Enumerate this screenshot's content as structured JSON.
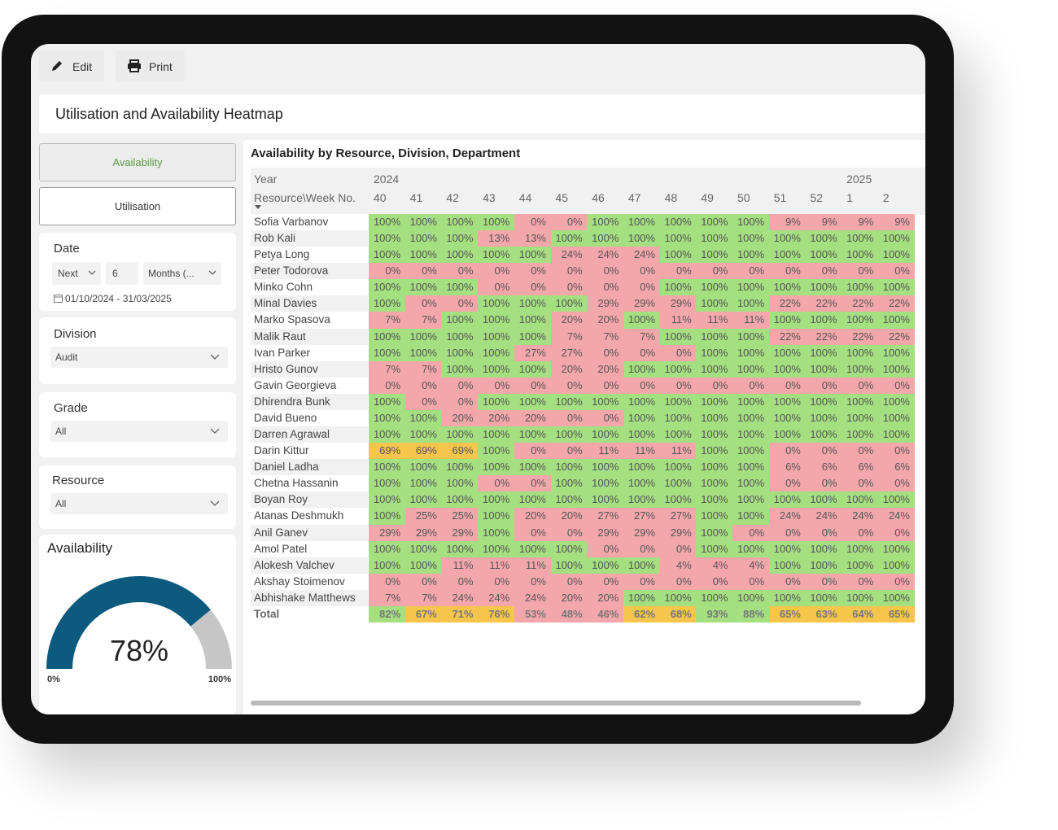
{
  "toolbar": {
    "edit": "Edit",
    "print": "Print"
  },
  "header": {
    "title": "Utilisation and Availability Heatmap"
  },
  "sidebar": {
    "tabs": [
      "Availability",
      "Utilisation"
    ],
    "date": {
      "label": "Date",
      "direction": "Next",
      "count": "6",
      "unit": "Months (...",
      "range": "01/10/2024 - 31/03/2025"
    },
    "division": {
      "label": "Division",
      "value": "Audit"
    },
    "grade": {
      "label": "Grade",
      "value": "All"
    },
    "resource": {
      "label": "Resource",
      "value": "All"
    }
  },
  "gauge": {
    "title": "Availability",
    "value": 78,
    "label": "78%",
    "min": {
      "value": 0,
      "label": "0%"
    },
    "max": {
      "value": 100,
      "label": "100%"
    }
  },
  "table": {
    "title": "Availability by Resource, Division, Department",
    "year_label": "Year",
    "corner": "Resource\\Week No.",
    "years": [
      "2024",
      null,
      null,
      null,
      null,
      null,
      null,
      null,
      null,
      null,
      null,
      null,
      null,
      "2025",
      null
    ],
    "weeks": [
      "40",
      "41",
      "42",
      "43",
      "44",
      "45",
      "46",
      "47",
      "48",
      "49",
      "50",
      "51",
      "52",
      "1",
      "2"
    ],
    "rows": [
      {
        "name": "Sofia Varbanov",
        "cells": [
          "100%",
          "100%",
          "100%",
          "100%",
          "0%",
          "0%",
          "100%",
          "100%",
          "100%",
          "100%",
          "100%",
          "9%",
          "9%",
          "9%",
          "9%"
        ]
      },
      {
        "name": "Rob Kali",
        "cells": [
          "100%",
          "100%",
          "100%",
          "13%",
          "13%",
          "100%",
          "100%",
          "100%",
          "100%",
          "100%",
          "100%",
          "100%",
          "100%",
          "100%",
          "100%"
        ]
      },
      {
        "name": "Petya Long",
        "cells": [
          "100%",
          "100%",
          "100%",
          "100%",
          "100%",
          "24%",
          "24%",
          "24%",
          "100%",
          "100%",
          "100%",
          "100%",
          "100%",
          "100%",
          "100%"
        ]
      },
      {
        "name": "Peter Todorova",
        "cells": [
          "0%",
          "0%",
          "0%",
          "0%",
          "0%",
          "0%",
          "0%",
          "0%",
          "0%",
          "0%",
          "0%",
          "0%",
          "0%",
          "0%",
          "0%"
        ]
      },
      {
        "name": "Minko Cohn",
        "cells": [
          "100%",
          "100%",
          "100%",
          "0%",
          "0%",
          "0%",
          "0%",
          "0%",
          "100%",
          "100%",
          "100%",
          "100%",
          "100%",
          "100%",
          "100%"
        ]
      },
      {
        "name": "Minal Davies",
        "cells": [
          "100%",
          "0%",
          "0%",
          "100%",
          "100%",
          "100%",
          "29%",
          "29%",
          "29%",
          "100%",
          "100%",
          "22%",
          "22%",
          "22%",
          "22%"
        ]
      },
      {
        "name": "Marko Spasova",
        "cells": [
          "7%",
          "7%",
          "100%",
          "100%",
          "100%",
          "20%",
          "20%",
          "100%",
          "11%",
          "11%",
          "11%",
          "100%",
          "100%",
          "100%",
          "100%"
        ]
      },
      {
        "name": "Malik Raut",
        "cells": [
          "100%",
          "100%",
          "100%",
          "100%",
          "100%",
          "7%",
          "7%",
          "7%",
          "100%",
          "100%",
          "100%",
          "22%",
          "22%",
          "22%",
          "22%"
        ]
      },
      {
        "name": "Ivan Parker",
        "cells": [
          "100%",
          "100%",
          "100%",
          "100%",
          "27%",
          "27%",
          "0%",
          "0%",
          "0%",
          "100%",
          "100%",
          "100%",
          "100%",
          "100%",
          "100%"
        ]
      },
      {
        "name": "Hristo Gunov",
        "cells": [
          "7%",
          "7%",
          "100%",
          "100%",
          "100%",
          "20%",
          "20%",
          "100%",
          "100%",
          "100%",
          "100%",
          "100%",
          "100%",
          "100%",
          "100%"
        ]
      },
      {
        "name": "Gavin Georgieva",
        "cells": [
          "0%",
          "0%",
          "0%",
          "0%",
          "0%",
          "0%",
          "0%",
          "0%",
          "0%",
          "0%",
          "0%",
          "0%",
          "0%",
          "0%",
          "0%"
        ]
      },
      {
        "name": "Dhirendra Bunk",
        "cells": [
          "100%",
          "0%",
          "0%",
          "100%",
          "100%",
          "100%",
          "100%",
          "100%",
          "100%",
          "100%",
          "100%",
          "100%",
          "100%",
          "100%",
          "100%"
        ]
      },
      {
        "name": "David Bueno",
        "cells": [
          "100%",
          "100%",
          "20%",
          "20%",
          "20%",
          "0%",
          "0%",
          "100%",
          "100%",
          "100%",
          "100%",
          "100%",
          "100%",
          "100%",
          "100%"
        ]
      },
      {
        "name": "Darren Agrawal",
        "cells": [
          "100%",
          "100%",
          "100%",
          "100%",
          "100%",
          "100%",
          "100%",
          "100%",
          "100%",
          "100%",
          "100%",
          "100%",
          "100%",
          "100%",
          "100%"
        ]
      },
      {
        "name": "Darin Kittur",
        "cells": [
          "69%",
          "69%",
          "69%",
          "100%",
          "0%",
          "0%",
          "11%",
          "11%",
          "11%",
          "100%",
          "100%",
          "0%",
          "0%",
          "0%",
          "0%"
        ]
      },
      {
        "name": "Daniel Ladha",
        "cells": [
          "100%",
          "100%",
          "100%",
          "100%",
          "100%",
          "100%",
          "100%",
          "100%",
          "100%",
          "100%",
          "100%",
          "6%",
          "6%",
          "6%",
          "6%"
        ]
      },
      {
        "name": "Chetna Hassanin",
        "cells": [
          "100%",
          "100%",
          "100%",
          "0%",
          "0%",
          "100%",
          "100%",
          "100%",
          "100%",
          "100%",
          "100%",
          "0%",
          "0%",
          "0%",
          "0%"
        ]
      },
      {
        "name": "Boyan Roy",
        "cells": [
          "100%",
          "100%",
          "100%",
          "100%",
          "100%",
          "100%",
          "100%",
          "100%",
          "100%",
          "100%",
          "100%",
          "100%",
          "100%",
          "100%",
          "100%"
        ]
      },
      {
        "name": "Atanas Deshmukh",
        "cells": [
          "100%",
          "25%",
          "25%",
          "100%",
          "20%",
          "20%",
          "27%",
          "27%",
          "27%",
          "100%",
          "100%",
          "24%",
          "24%",
          "24%",
          "24%"
        ]
      },
      {
        "name": "Anil Ganev",
        "cells": [
          "29%",
          "29%",
          "29%",
          "100%",
          "0%",
          "0%",
          "29%",
          "29%",
          "29%",
          "100%",
          "0%",
          "0%",
          "0%",
          "0%",
          "0%"
        ]
      },
      {
        "name": "Amol Patel",
        "cells": [
          "100%",
          "100%",
          "100%",
          "100%",
          "100%",
          "100%",
          "0%",
          "0%",
          "0%",
          "100%",
          "100%",
          "100%",
          "100%",
          "100%",
          "100%"
        ]
      },
      {
        "name": "Alokesh Valchev",
        "cells": [
          "100%",
          "100%",
          "11%",
          "11%",
          "11%",
          "100%",
          "100%",
          "100%",
          "4%",
          "4%",
          "4%",
          "100%",
          "100%",
          "100%",
          "100%"
        ]
      },
      {
        "name": "Akshay Stoimenov",
        "cells": [
          "0%",
          "0%",
          "0%",
          "0%",
          "0%",
          "0%",
          "0%",
          "0%",
          "0%",
          "0%",
          "0%",
          "0%",
          "0%",
          "0%",
          "0%"
        ]
      },
      {
        "name": "Abhishake Matthews",
        "cells": [
          "7%",
          "7%",
          "24%",
          "24%",
          "24%",
          "20%",
          "20%",
          "100%",
          "100%",
          "100%",
          "100%",
          "100%",
          "100%",
          "100%",
          "100%"
        ]
      }
    ],
    "total": {
      "name": "Total",
      "cells": [
        "82%",
        "67%",
        "71%",
        "76%",
        "53%",
        "48%",
        "46%",
        "62%",
        "68%",
        "93%",
        "88%",
        "65%",
        "63%",
        "64%",
        "65%"
      ]
    }
  }
}
